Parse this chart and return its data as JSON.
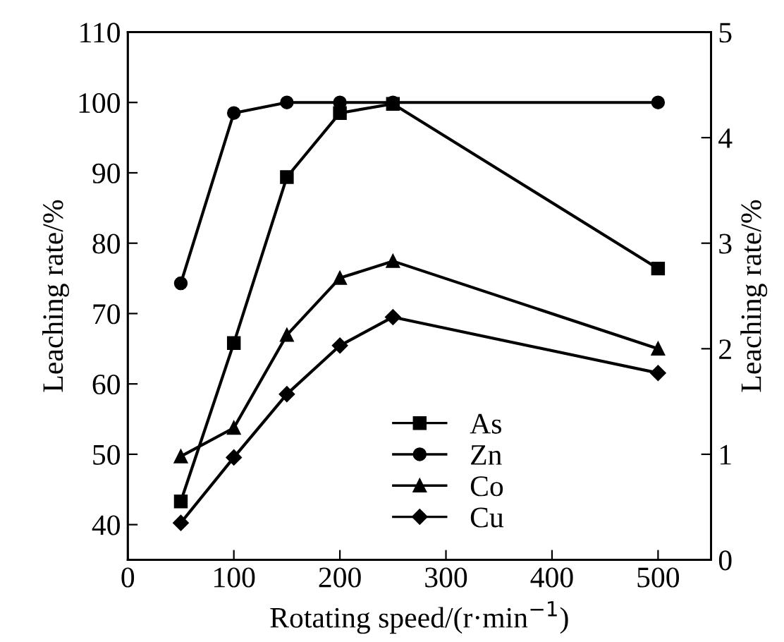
{
  "chart_data": {
    "type": "line",
    "xlabel": "Rotating speed/(r·min$^{−1}$)",
    "ylabel": "Leaching rate/%",
    "y2label": "Leaching rate/%",
    "x": [
      50,
      100,
      150,
      200,
      250,
      500
    ],
    "series": [
      {
        "name": "As",
        "color": "#000000",
        "marker": "square",
        "values": [
          43.3,
          65.8,
          89.4,
          98.5,
          99.8,
          76.4
        ]
      },
      {
        "name": "Zn",
        "color": "#000000",
        "marker": "circle",
        "values": [
          74.3,
          98.5,
          100,
          100,
          100,
          100
        ]
      },
      {
        "name": "Co",
        "color": "#000000",
        "marker": "triangle",
        "axis": "y2",
        "values": [
          0.98,
          1.25,
          2.13,
          2.67,
          2.83,
          2.0
        ]
      },
      {
        "name": "Cu",
        "color": "#000000",
        "marker": "diamond",
        "axis": "y2",
        "values": [
          0.35,
          0.97,
          1.57,
          2.03,
          2.3,
          1.77
        ]
      }
    ],
    "xlim": [
      0,
      550
    ],
    "xticks": [
      0,
      100,
      200,
      300,
      400,
      500
    ],
    "ylim": [
      35,
      110
    ],
    "yticks": [
      40,
      50,
      60,
      70,
      80,
      90,
      100,
      110
    ],
    "y2lim": [
      0,
      5
    ],
    "y2ticks": [
      0,
      1,
      2,
      3,
      4,
      5
    ],
    "grid": false,
    "legend": "bottom",
    "line_style": "solid"
  }
}
